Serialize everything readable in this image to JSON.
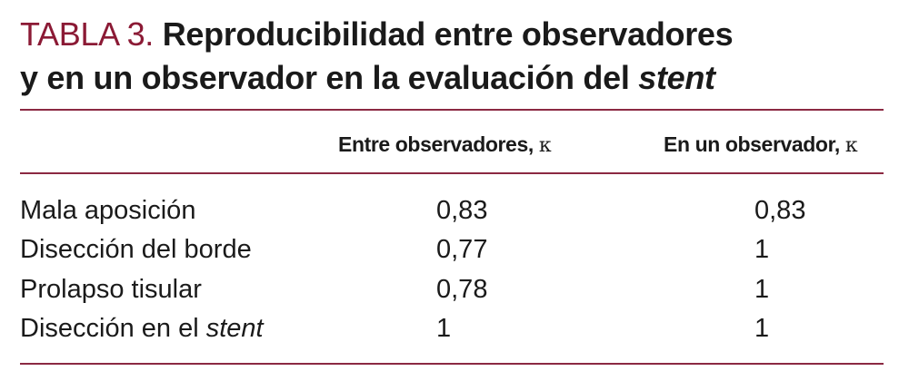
{
  "title": {
    "label": "TABLA 3.",
    "line1": "Reproducibilidad entre observadores",
    "line2_prefix": "y en un observador en la evaluación del",
    "line2_italic": "stent"
  },
  "header": {
    "col1": "Entre observadores,",
    "col2": "En un observador,",
    "kappa_symbol": "κ"
  },
  "rows": [
    {
      "label": "Mala aposición",
      "label_italic": "",
      "inter": "0,83",
      "intra": "0,83"
    },
    {
      "label": "Disección del borde",
      "label_italic": "",
      "inter": "0,77",
      "intra": "1"
    },
    {
      "label": "Prolapso tisular",
      "label_italic": "",
      "inter": "0,78",
      "intra": "1"
    },
    {
      "label": "Disección en el",
      "label_italic": "stent",
      "inter": "1",
      "intra": "1"
    }
  ],
  "colors": {
    "title_label": "#8b1a35",
    "rules": "#8b2942"
  }
}
